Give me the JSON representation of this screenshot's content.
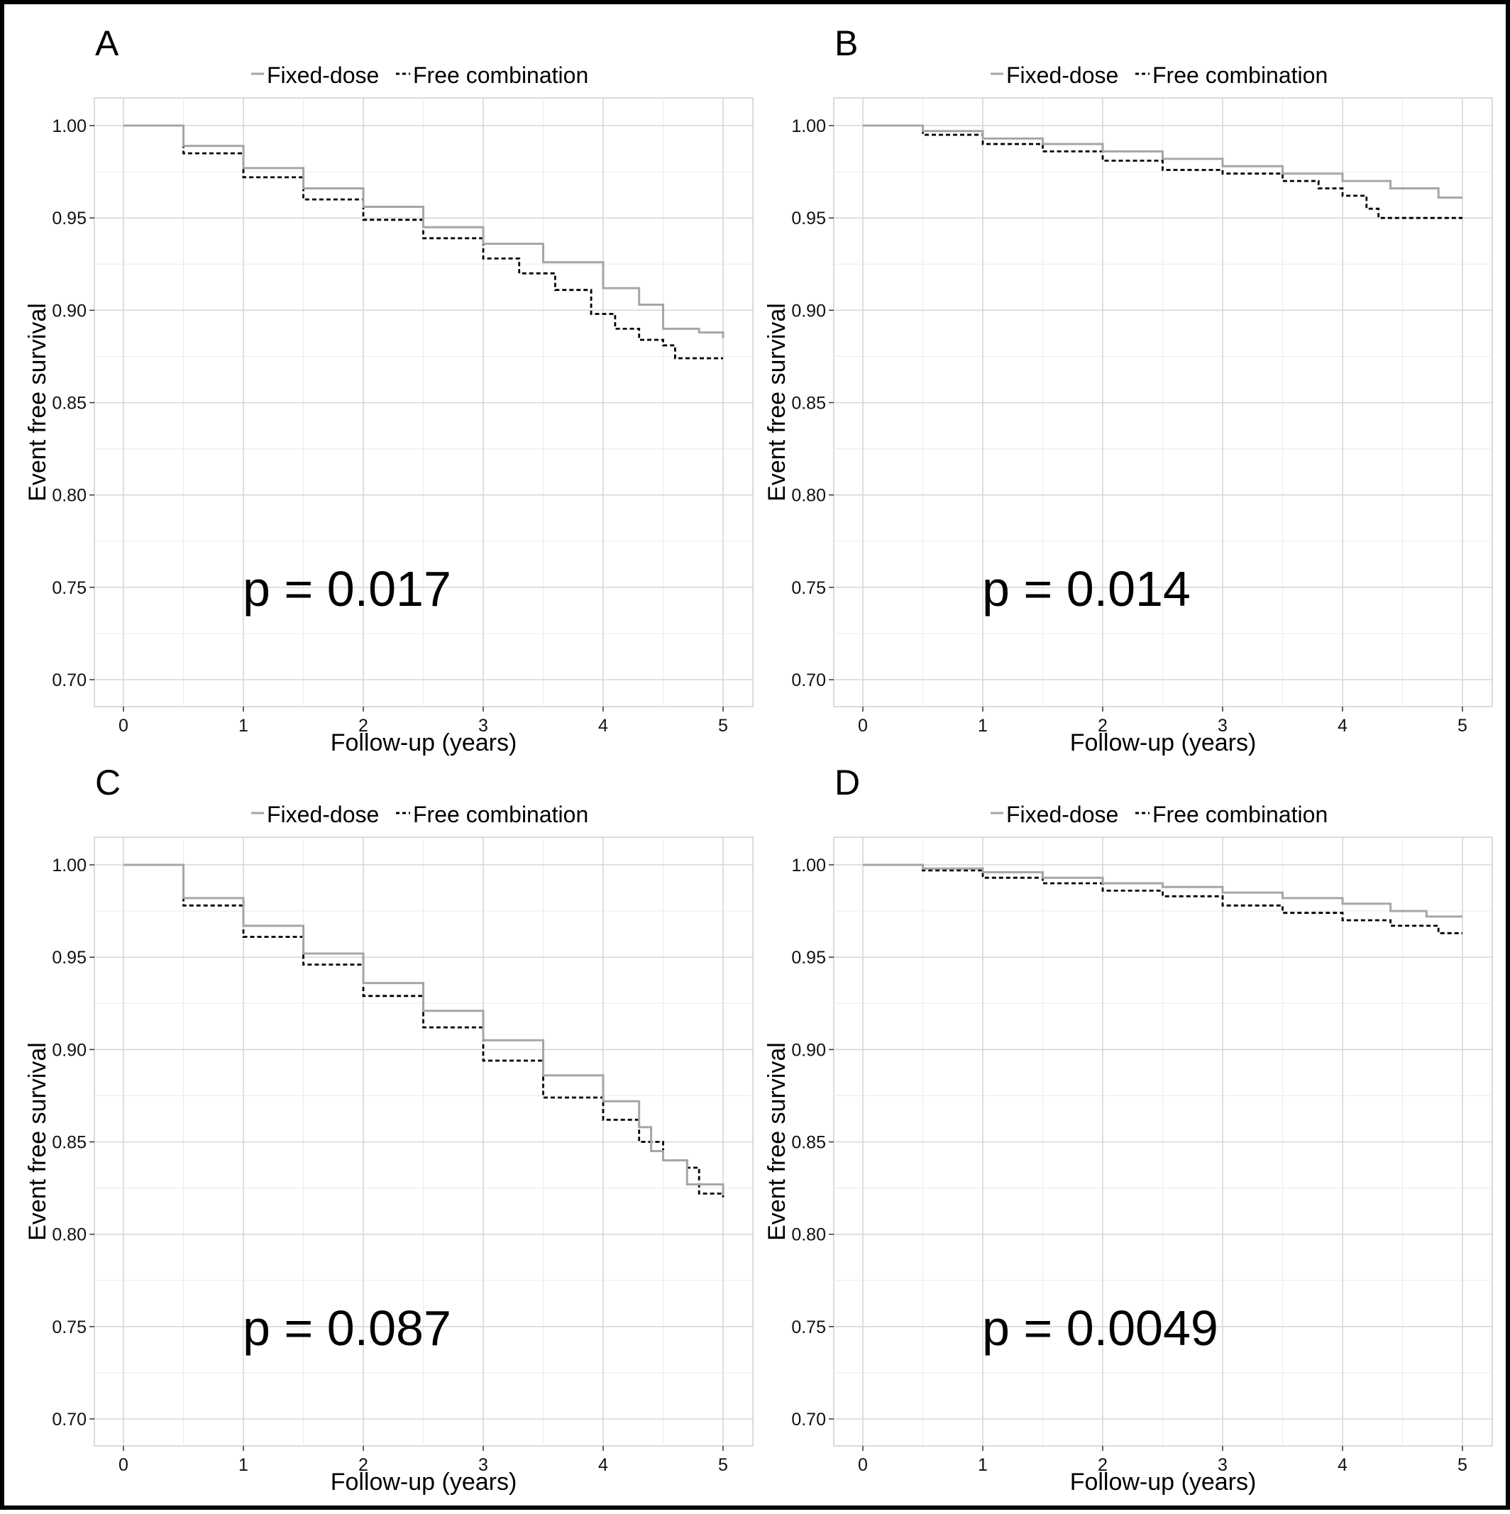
{
  "figure": {
    "series_style": {
      "Fixed-dose": {
        "color": "#a6a6a6",
        "dash": "solid"
      },
      "Free combination": {
        "color": "#000000",
        "dash": "dashed"
      }
    }
  },
  "chart_data": [
    {
      "panel": "A",
      "type": "line",
      "step": true,
      "xlabel": "Follow-up (years)",
      "ylabel": "Event free survival",
      "xlim": [
        0,
        5
      ],
      "ylim": [
        0.7,
        1.0
      ],
      "xticks": [
        "0",
        "1",
        "2",
        "3",
        "4",
        "5"
      ],
      "yticks": [
        "0.70",
        "0.75",
        "0.80",
        "0.85",
        "0.90",
        "0.95",
        "1.00"
      ],
      "grid": true,
      "legend_position": "top",
      "annotation": "p = 0.017",
      "series": [
        {
          "name": "Fixed-dose",
          "x": [
            0,
            0.5,
            1,
            1.5,
            2,
            2.5,
            3,
            3.5,
            4,
            4.3,
            4.5,
            4.8,
            5
          ],
          "y": [
            1.0,
            0.989,
            0.977,
            0.966,
            0.956,
            0.945,
            0.936,
            0.926,
            0.912,
            0.903,
            0.89,
            0.888,
            0.885
          ]
        },
        {
          "name": "Free combination",
          "x": [
            0,
            0.5,
            1,
            1.5,
            2,
            2.5,
            3,
            3.3,
            3.6,
            3.9,
            4.1,
            4.3,
            4.5,
            4.6,
            5
          ],
          "y": [
            1.0,
            0.985,
            0.972,
            0.96,
            0.949,
            0.939,
            0.928,
            0.92,
            0.911,
            0.898,
            0.89,
            0.884,
            0.881,
            0.874,
            0.874
          ]
        }
      ]
    },
    {
      "panel": "B",
      "type": "line",
      "step": true,
      "xlabel": "Follow-up (years)",
      "ylabel": "Event free survival",
      "xlim": [
        0,
        5
      ],
      "ylim": [
        0.7,
        1.0
      ],
      "xticks": [
        "0",
        "1",
        "2",
        "3",
        "4",
        "5"
      ],
      "yticks": [
        "0.70",
        "0.75",
        "0.80",
        "0.85",
        "0.90",
        "0.95",
        "1.00"
      ],
      "grid": true,
      "legend_position": "top",
      "annotation": "p = 0.014",
      "series": [
        {
          "name": "Fixed-dose",
          "x": [
            0,
            0.5,
            1,
            1.5,
            2,
            2.5,
            3,
            3.5,
            4,
            4.4,
            4.8,
            5
          ],
          "y": [
            1.0,
            0.997,
            0.993,
            0.99,
            0.986,
            0.982,
            0.978,
            0.974,
            0.97,
            0.966,
            0.961,
            0.961
          ]
        },
        {
          "name": "Free combination",
          "x": [
            0,
            0.5,
            1,
            1.5,
            2,
            2.5,
            3,
            3.5,
            3.8,
            4.0,
            4.2,
            4.3,
            5
          ],
          "y": [
            1.0,
            0.995,
            0.99,
            0.986,
            0.981,
            0.976,
            0.974,
            0.97,
            0.966,
            0.962,
            0.955,
            0.95,
            0.95
          ]
        }
      ]
    },
    {
      "panel": "C",
      "type": "line",
      "step": true,
      "xlabel": "Follow-up (years)",
      "ylabel": "Event free survival",
      "xlim": [
        0,
        5
      ],
      "ylim": [
        0.7,
        1.0
      ],
      "xticks": [
        "0",
        "1",
        "2",
        "3",
        "4",
        "5"
      ],
      "yticks": [
        "0.70",
        "0.75",
        "0.80",
        "0.85",
        "0.90",
        "0.95",
        "1.00"
      ],
      "grid": true,
      "legend_position": "top",
      "annotation": "p = 0.087",
      "series": [
        {
          "name": "Fixed-dose",
          "x": [
            0,
            0.5,
            1,
            1.5,
            2,
            2.5,
            3,
            3.5,
            4,
            4.3,
            4.4,
            4.5,
            4.7,
            5
          ],
          "y": [
            1.0,
            0.982,
            0.967,
            0.952,
            0.936,
            0.921,
            0.905,
            0.886,
            0.872,
            0.858,
            0.845,
            0.84,
            0.827,
            0.821
          ]
        },
        {
          "name": "Free combination",
          "x": [
            0,
            0.5,
            1,
            1.5,
            2,
            2.5,
            3,
            3.5,
            4,
            4.3,
            4.5,
            4.7,
            4.8,
            5
          ],
          "y": [
            1.0,
            0.978,
            0.961,
            0.946,
            0.929,
            0.912,
            0.894,
            0.874,
            0.862,
            0.85,
            0.84,
            0.836,
            0.822,
            0.82
          ]
        }
      ]
    },
    {
      "panel": "D",
      "type": "line",
      "step": true,
      "xlabel": "Follow-up (years)",
      "ylabel": "Event free survival",
      "xlim": [
        0,
        5
      ],
      "ylim": [
        0.7,
        1.0
      ],
      "xticks": [
        "0",
        "1",
        "2",
        "3",
        "4",
        "5"
      ],
      "yticks": [
        "0.70",
        "0.75",
        "0.80",
        "0.85",
        "0.90",
        "0.95",
        "1.00"
      ],
      "grid": true,
      "legend_position": "top",
      "annotation": "p = 0.0049",
      "series": [
        {
          "name": "Fixed-dose",
          "x": [
            0,
            0.5,
            1,
            1.5,
            2,
            2.5,
            3,
            3.5,
            4,
            4.4,
            4.7,
            5
          ],
          "y": [
            1.0,
            0.998,
            0.996,
            0.993,
            0.99,
            0.988,
            0.985,
            0.982,
            0.979,
            0.975,
            0.972,
            0.972
          ]
        },
        {
          "name": "Free combination",
          "x": [
            0,
            0.5,
            1,
            1.5,
            2,
            2.5,
            3,
            3.5,
            4,
            4.4,
            4.8,
            5
          ],
          "y": [
            1.0,
            0.997,
            0.993,
            0.99,
            0.986,
            0.983,
            0.978,
            0.974,
            0.97,
            0.967,
            0.963,
            0.963
          ]
        }
      ]
    }
  ]
}
